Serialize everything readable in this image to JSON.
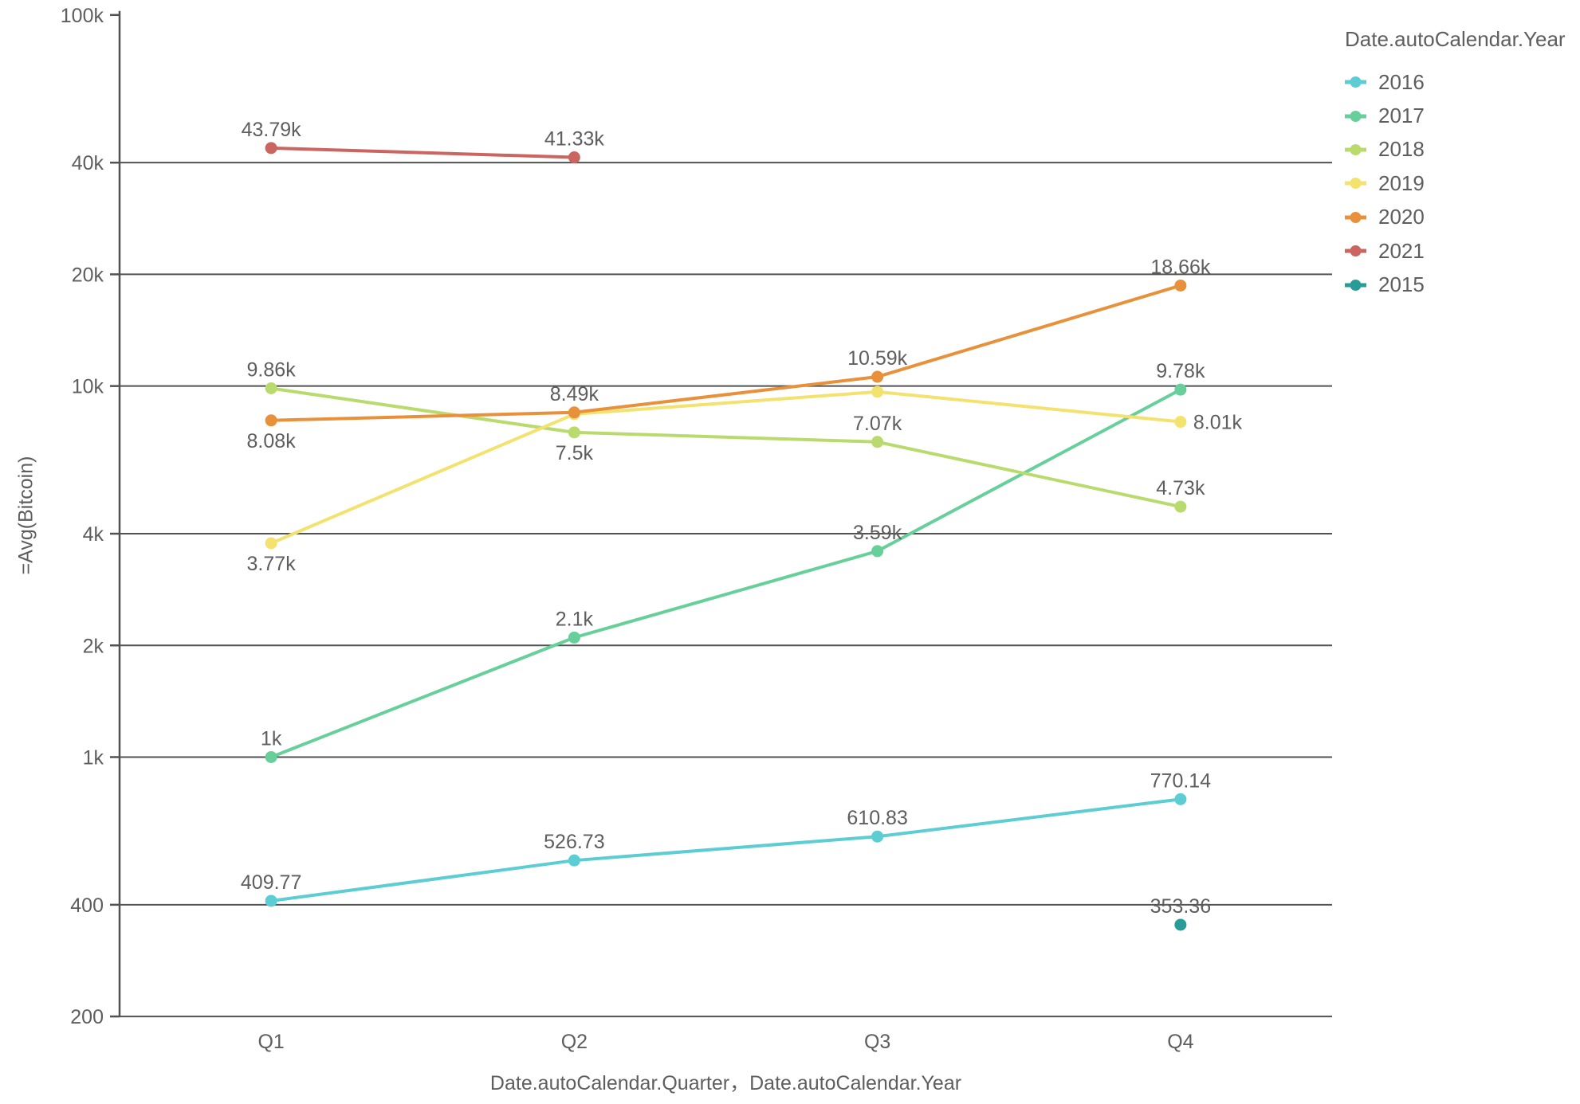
{
  "chart_data": {
    "type": "line",
    "title": "",
    "xlabel": "Date.autoCalendar.Quarter，Date.autoCalendar.Year",
    "ylabel": "=Avg(Bitcoin)",
    "legend_title": "Date.autoCalendar.Year",
    "legend_position": "right",
    "grid": true,
    "y_scale": "log",
    "y_domain": [
      200,
      100000
    ],
    "y_ticks": [
      {
        "label": "100k",
        "value": 100000
      },
      {
        "label": "40k",
        "value": 40000
      },
      {
        "label": "20k",
        "value": 20000
      },
      {
        "label": "10k",
        "value": 10000
      },
      {
        "label": "4k",
        "value": 4000
      },
      {
        "label": "2k",
        "value": 2000
      },
      {
        "label": "1k",
        "value": 1000
      },
      {
        "label": "400",
        "value": 400
      },
      {
        "label": "200",
        "value": 200
      }
    ],
    "x_categories": [
      "Q1",
      "Q2",
      "Q3",
      "Q4"
    ],
    "series": [
      {
        "name": "2016",
        "color": "#5BCDD3",
        "points": [
          {
            "x": "Q1",
            "value": 409.77,
            "label": "409.77",
            "label_pos": "above"
          },
          {
            "x": "Q2",
            "value": 526.73,
            "label": "526.73",
            "label_pos": "above"
          },
          {
            "x": "Q3",
            "value": 610.83,
            "label": "610.83",
            "label_pos": "above"
          },
          {
            "x": "Q4",
            "value": 770.14,
            "label": "770.14",
            "label_pos": "above"
          }
        ]
      },
      {
        "name": "2017",
        "color": "#67D09A",
        "points": [
          {
            "x": "Q1",
            "value": 1000,
            "label": "1k",
            "label_pos": "above"
          },
          {
            "x": "Q2",
            "value": 2100,
            "label": "2.1k",
            "label_pos": "above"
          },
          {
            "x": "Q3",
            "value": 3590,
            "label": "3.59k",
            "label_pos": "above"
          },
          {
            "x": "Q4",
            "value": 9780,
            "label": "9.78k",
            "label_pos": "above"
          }
        ]
      },
      {
        "name": "2018",
        "color": "#B9DB6E",
        "points": [
          {
            "x": "Q1",
            "value": 9860,
            "label": "9.86k",
            "label_pos": "above"
          },
          {
            "x": "Q2",
            "value": 7500,
            "label": "7.5k",
            "label_pos": "below"
          },
          {
            "x": "Q3",
            "value": 7070,
            "label": "7.07k",
            "label_pos": "above"
          },
          {
            "x": "Q4",
            "value": 4730,
            "label": "4.73k",
            "label_pos": "above"
          }
        ]
      },
      {
        "name": "2019",
        "color": "#F4E26E",
        "points": [
          {
            "x": "Q1",
            "value": 3770,
            "label": "3.77k",
            "label_pos": "below"
          },
          {
            "x": "Q2",
            "value": 8400,
            "label": null,
            "estimated": true
          },
          {
            "x": "Q3",
            "value": 9650,
            "label": null,
            "estimated": true
          },
          {
            "x": "Q4",
            "value": 8010,
            "label": "8.01k",
            "label_pos": "right"
          }
        ]
      },
      {
        "name": "2020",
        "color": "#E8913A",
        "points": [
          {
            "x": "Q1",
            "value": 8080,
            "label": "8.08k",
            "label_pos": "below"
          },
          {
            "x": "Q2",
            "value": 8490,
            "label": "8.49k",
            "label_pos": "above"
          },
          {
            "x": "Q3",
            "value": 10590,
            "label": "10.59k",
            "label_pos": "above"
          },
          {
            "x": "Q4",
            "value": 18660,
            "label": "18.66k",
            "label_pos": "above"
          }
        ]
      },
      {
        "name": "2021",
        "color": "#CB6560",
        "points": [
          {
            "x": "Q1",
            "value": 43790,
            "label": "43.79k",
            "label_pos": "above"
          },
          {
            "x": "Q2",
            "value": 41330,
            "label": "41.33k",
            "label_pos": "above"
          }
        ]
      },
      {
        "name": "2015",
        "color": "#279C98",
        "points": [
          {
            "x": "Q4",
            "value": 353.36,
            "label": "353.36",
            "label_pos": "above"
          }
        ]
      }
    ]
  }
}
